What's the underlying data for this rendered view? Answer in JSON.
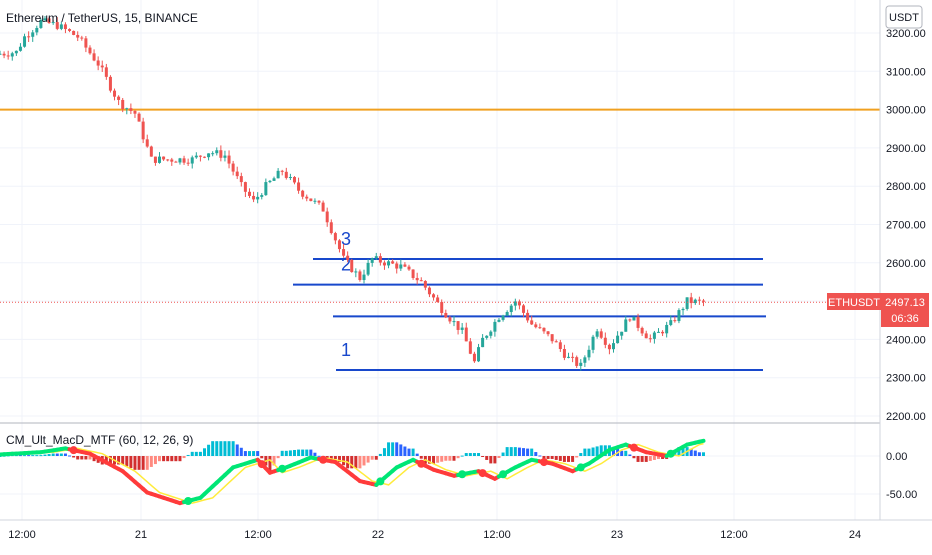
{
  "header": {
    "title": "Ethereum / TetherUS, 15, BINANCE"
  },
  "indicator": {
    "label": "CM_Ult_MacD_MTF (60, 12, 26, 9)"
  },
  "price_axis": {
    "currency": "USDT",
    "ticks": [
      "3200.00",
      "3100.00",
      "3000.00",
      "2900.00",
      "2800.00",
      "2700.00",
      "2600.00",
      "2500.00",
      "2400.00",
      "2300.00",
      "2200.00"
    ]
  },
  "indicator_axis": {
    "ticks": [
      "0.00",
      "-50.00"
    ]
  },
  "time_axis": {
    "ticks": [
      "12:00",
      "21",
      "12:00",
      "22",
      "12:00",
      "23",
      "12:00",
      "24"
    ]
  },
  "price_badge": {
    "symbol": "ETHUSDT",
    "price": "2497.13",
    "countdown": "06:36"
  },
  "levels": {
    "labels": [
      "1",
      "2",
      "3"
    ]
  },
  "colors": {
    "up_candle": "#26a69a",
    "down_candle": "#ef5350",
    "level_line": "#1848cc",
    "resistance_line": "#f0a020",
    "macd_rising": "#00e676",
    "macd_falling": "#ff3b3b",
    "signal_line": "#ffeb3b",
    "hist_pos_strong": "#00bcd4",
    "hist_pos_weak": "#2962ff",
    "hist_neg_strong": "#d32f2f",
    "price_badge": "#ef5350"
  },
  "chart_data": [
    {
      "type": "candlestick",
      "title": "Ethereum / TetherUS, 15, BINANCE",
      "y_unit": "USDT",
      "ylim": [
        2180,
        3230
      ],
      "x_ticks": [
        "12:00",
        "21",
        "12:00",
        "22",
        "12:00",
        "23",
        "12:00",
        "24"
      ],
      "last_price": 2497.13,
      "path_keypoints": [
        {
          "t": 0,
          "price": 3145
        },
        {
          "t": 5,
          "price": 3150
        },
        {
          "t": 7,
          "price": 3190
        },
        {
          "t": 11,
          "price": 3230
        },
        {
          "t": 15,
          "price": 3220
        },
        {
          "t": 20,
          "price": 3190
        },
        {
          "t": 25,
          "price": 3120
        },
        {
          "t": 30,
          "price": 3020
        },
        {
          "t": 34,
          "price": 2990
        },
        {
          "t": 38,
          "price": 2870
        },
        {
          "t": 43,
          "price": 2870
        },
        {
          "t": 48,
          "price": 2870
        },
        {
          "t": 52,
          "price": 2890
        },
        {
          "t": 56,
          "price": 2880
        },
        {
          "t": 60,
          "price": 2800
        },
        {
          "t": 63,
          "price": 2760
        },
        {
          "t": 66,
          "price": 2800
        },
        {
          "t": 70,
          "price": 2840
        },
        {
          "t": 74,
          "price": 2790
        },
        {
          "t": 80,
          "price": 2740
        },
        {
          "t": 85,
          "price": 2610
        },
        {
          "t": 89,
          "price": 2560
        },
        {
          "t": 92,
          "price": 2610
        },
        {
          "t": 99,
          "price": 2590
        },
        {
          "t": 104,
          "price": 2550
        },
        {
          "t": 109,
          "price": 2480
        },
        {
          "t": 114,
          "price": 2420
        },
        {
          "t": 117,
          "price": 2340
        },
        {
          "t": 119,
          "price": 2400
        },
        {
          "t": 123,
          "price": 2460
        },
        {
          "t": 127,
          "price": 2500
        },
        {
          "t": 131,
          "price": 2440
        },
        {
          "t": 136,
          "price": 2400
        },
        {
          "t": 140,
          "price": 2350
        },
        {
          "t": 143,
          "price": 2330
        },
        {
          "t": 147,
          "price": 2430
        },
        {
          "t": 150,
          "price": 2380
        },
        {
          "t": 155,
          "price": 2460
        },
        {
          "t": 160,
          "price": 2400
        },
        {
          "t": 165,
          "price": 2440
        },
        {
          "t": 169,
          "price": 2500
        },
        {
          "t": 172,
          "price": 2497
        }
      ],
      "levels": [
        {
          "label": "1",
          "price": 2320,
          "color": "#1848cc"
        },
        {
          "label": "",
          "price": 2460,
          "color": "#1848cc"
        },
        {
          "label": "2",
          "price": 2543,
          "color": "#1848cc"
        },
        {
          "label": "3",
          "price": 2610,
          "color": "#1848cc"
        },
        {
          "label": "",
          "price": 3000,
          "color": "#f0a020"
        }
      ]
    },
    {
      "type": "line",
      "title": "CM_Ult_MacD_MTF (60, 12, 26, 9)",
      "ylim": [
        -70,
        35
      ],
      "y_ticks": [
        0,
        -50
      ],
      "macd_keypoints": [
        {
          "t": 0,
          "v": 2
        },
        {
          "t": 10,
          "v": 5
        },
        {
          "t": 16,
          "v": 10
        },
        {
          "t": 22,
          "v": 3
        },
        {
          "t": 30,
          "v": -20
        },
        {
          "t": 36,
          "v": -48
        },
        {
          "t": 44,
          "v": -62
        },
        {
          "t": 49,
          "v": -55
        },
        {
          "t": 57,
          "v": -15
        },
        {
          "t": 63,
          "v": -5
        },
        {
          "t": 66,
          "v": -22
        },
        {
          "t": 70,
          "v": -15
        },
        {
          "t": 76,
          "v": -2
        },
        {
          "t": 82,
          "v": -8
        },
        {
          "t": 88,
          "v": -33
        },
        {
          "t": 92,
          "v": -38
        },
        {
          "t": 97,
          "v": -15
        },
        {
          "t": 101,
          "v": -5
        },
        {
          "t": 106,
          "v": -18
        },
        {
          "t": 111,
          "v": -26
        },
        {
          "t": 117,
          "v": -20
        },
        {
          "t": 121,
          "v": -30
        },
        {
          "t": 126,
          "v": -15
        },
        {
          "t": 130,
          "v": -5
        },
        {
          "t": 135,
          "v": -10
        },
        {
          "t": 140,
          "v": -20
        },
        {
          "t": 144,
          "v": -10
        },
        {
          "t": 149,
          "v": 8
        },
        {
          "t": 153,
          "v": 15
        },
        {
          "t": 158,
          "v": 5
        },
        {
          "t": 163,
          "v": 0
        },
        {
          "t": 168,
          "v": 15
        },
        {
          "t": 172,
          "v": 20
        }
      ],
      "signal_lag": 3
    }
  ]
}
